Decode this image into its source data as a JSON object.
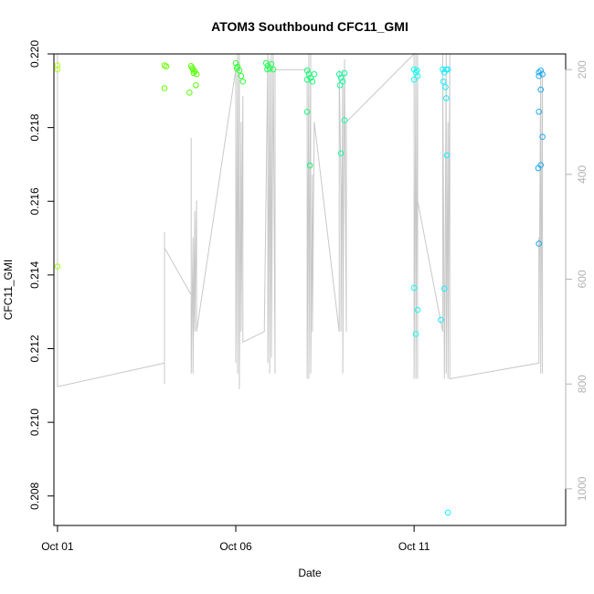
{
  "chart_data": {
    "type": "scatter",
    "title": "ATOM3 Southbound CFC11_GMI",
    "xlabel": "Date",
    "ylabel": "CFC11_GMI",
    "xlim": [
      -0.1,
      14.25
    ],
    "ylim": [
      0.2072,
      0.22
    ],
    "xticks": [
      {
        "value": 0,
        "label": "Oct 01"
      },
      {
        "value": 5,
        "label": "Oct 06"
      },
      {
        "value": 10,
        "label": "Oct 11"
      }
    ],
    "yticks": [
      0.208,
      0.21,
      0.212,
      0.214,
      0.216,
      0.218,
      0.22
    ],
    "y_right": {
      "lim": [
        1070,
        170
      ],
      "ticks": [
        200,
        400,
        600,
        800,
        1000
      ],
      "color": "#b3b3b3"
    },
    "grid": false,
    "points": [
      {
        "x": 0.0,
        "y": 0.21969,
        "color": "#b3ff1a"
      },
      {
        "x": 0.0,
        "y": 0.21958,
        "color": "#b3ff1a"
      },
      {
        "x": 0.0,
        "y": 0.21423,
        "color": "#a8ff1a"
      },
      {
        "x": 3.0,
        "y": 0.21969,
        "color": "#66ff00"
      },
      {
        "x": 3.05,
        "y": 0.21966,
        "color": "#66ff00"
      },
      {
        "x": 3.0,
        "y": 0.21907,
        "color": "#66ff00"
      },
      {
        "x": 3.75,
        "y": 0.21967,
        "color": "#55ff00"
      },
      {
        "x": 3.8,
        "y": 0.21958,
        "color": "#55ff00"
      },
      {
        "x": 3.85,
        "y": 0.21953,
        "color": "#55ff00"
      },
      {
        "x": 3.9,
        "y": 0.21945,
        "color": "#55ff00"
      },
      {
        "x": 3.78,
        "y": 0.21962,
        "color": "#55ff00"
      },
      {
        "x": 3.7,
        "y": 0.21895,
        "color": "#55ff00"
      },
      {
        "x": 3.88,
        "y": 0.21915,
        "color": "#55ff00"
      },
      {
        "x": 3.82,
        "y": 0.21948,
        "color": "#55ff00"
      },
      {
        "x": 5.0,
        "y": 0.21975,
        "color": "#33ff33"
      },
      {
        "x": 5.05,
        "y": 0.21965,
        "color": "#33ff33"
      },
      {
        "x": 5.1,
        "y": 0.21955,
        "color": "#33ff33"
      },
      {
        "x": 5.15,
        "y": 0.2194,
        "color": "#33ff33"
      },
      {
        "x": 5.2,
        "y": 0.21925,
        "color": "#33ff33"
      },
      {
        "x": 5.03,
        "y": 0.2196,
        "color": "#33ff33"
      },
      {
        "x": 5.85,
        "y": 0.21975,
        "color": "#22ff55"
      },
      {
        "x": 5.9,
        "y": 0.21968,
        "color": "#22ff55"
      },
      {
        "x": 5.95,
        "y": 0.2196,
        "color": "#22ff55"
      },
      {
        "x": 6.0,
        "y": 0.21972,
        "color": "#22ff55"
      },
      {
        "x": 6.05,
        "y": 0.21958,
        "color": "#22ff55"
      },
      {
        "x": 5.88,
        "y": 0.21958,
        "color": "#22ff55"
      },
      {
        "x": 7.0,
        "y": 0.21955,
        "color": "#11ff77"
      },
      {
        "x": 7.05,
        "y": 0.21945,
        "color": "#11ff77"
      },
      {
        "x": 7.1,
        "y": 0.21935,
        "color": "#11ff77"
      },
      {
        "x": 7.15,
        "y": 0.21925,
        "color": "#11ff77"
      },
      {
        "x": 7.2,
        "y": 0.21945,
        "color": "#11ff77"
      },
      {
        "x": 7.0,
        "y": 0.2193,
        "color": "#11ff77"
      },
      {
        "x": 7.0,
        "y": 0.21843,
        "color": "#11ff77"
      },
      {
        "x": 7.08,
        "y": 0.21697,
        "color": "#11ff77"
      },
      {
        "x": 7.9,
        "y": 0.21945,
        "color": "#11ffa0"
      },
      {
        "x": 7.95,
        "y": 0.21935,
        "color": "#11ffa0"
      },
      {
        "x": 8.0,
        "y": 0.21925,
        "color": "#11ffa0"
      },
      {
        "x": 8.05,
        "y": 0.21948,
        "color": "#11ffa0"
      },
      {
        "x": 7.92,
        "y": 0.21915,
        "color": "#11ffa0"
      },
      {
        "x": 8.05,
        "y": 0.2182,
        "color": "#11ffa0"
      },
      {
        "x": 7.95,
        "y": 0.2173,
        "color": "#11ffa0"
      },
      {
        "x": 10.0,
        "y": 0.21958,
        "color": "#11ffee"
      },
      {
        "x": 10.05,
        "y": 0.2195,
        "color": "#11ffee"
      },
      {
        "x": 10.1,
        "y": 0.2194,
        "color": "#11ffee"
      },
      {
        "x": 10.0,
        "y": 0.2193,
        "color": "#11ffee"
      },
      {
        "x": 10.08,
        "y": 0.21955,
        "color": "#11ffee"
      },
      {
        "x": 10.0,
        "y": 0.21365,
        "color": "#11ffee"
      },
      {
        "x": 10.1,
        "y": 0.21305,
        "color": "#11ffee"
      },
      {
        "x": 10.05,
        "y": 0.2124,
        "color": "#11ffee"
      },
      {
        "x": 10.8,
        "y": 0.21958,
        "color": "#11f0ff"
      },
      {
        "x": 10.85,
        "y": 0.2195,
        "color": "#11f0ff"
      },
      {
        "x": 10.9,
        "y": 0.21958,
        "color": "#11f0ff"
      },
      {
        "x": 10.95,
        "y": 0.21958,
        "color": "#11f0ff"
      },
      {
        "x": 10.82,
        "y": 0.21925,
        "color": "#11f0ff"
      },
      {
        "x": 10.88,
        "y": 0.2191,
        "color": "#11f0ff"
      },
      {
        "x": 10.9,
        "y": 0.2188,
        "color": "#11f0ff"
      },
      {
        "x": 10.92,
        "y": 0.21725,
        "color": "#11f0ff"
      },
      {
        "x": 10.85,
        "y": 0.21363,
        "color": "#11f0ff"
      },
      {
        "x": 10.75,
        "y": 0.21278,
        "color": "#11f0ff"
      },
      {
        "x": 10.95,
        "y": 0.20755,
        "color": "#11f0ff"
      },
      {
        "x": 13.5,
        "y": 0.2195,
        "color": "#22aaee"
      },
      {
        "x": 13.55,
        "y": 0.21955,
        "color": "#22aaee"
      },
      {
        "x": 13.6,
        "y": 0.21945,
        "color": "#22aaee"
      },
      {
        "x": 13.5,
        "y": 0.2194,
        "color": "#22aaee"
      },
      {
        "x": 13.55,
        "y": 0.21903,
        "color": "#22aaee"
      },
      {
        "x": 13.5,
        "y": 0.21843,
        "color": "#22aaee"
      },
      {
        "x": 13.6,
        "y": 0.21775,
        "color": "#22aaee"
      },
      {
        "x": 13.55,
        "y": 0.21698,
        "color": "#22aaee"
      },
      {
        "x": 13.48,
        "y": 0.2169,
        "color": "#22aaee"
      },
      {
        "x": 13.5,
        "y": 0.21485,
        "color": "#22aaee"
      }
    ],
    "profile_line": {
      "color": "#c8c8c8",
      "points": [
        [
          0.0,
          170
        ],
        [
          0.0,
          805
        ],
        [
          3.0,
          760
        ],
        [
          3.0,
          510
        ],
        [
          3.0,
          800
        ],
        [
          3.0,
          540
        ],
        [
          3.75,
          630
        ],
        [
          3.75,
          330
        ],
        [
          3.75,
          780
        ],
        [
          3.8,
          520
        ],
        [
          3.8,
          780
        ],
        [
          3.85,
          470
        ],
        [
          3.85,
          700
        ],
        [
          3.9,
          450
        ],
        [
          3.9,
          700
        ],
        [
          5.0,
          200
        ],
        [
          5.0,
          760
        ],
        [
          5.05,
          170
        ],
        [
          5.05,
          780
        ],
        [
          5.1,
          170
        ],
        [
          5.1,
          810
        ],
        [
          5.15,
          300
        ],
        [
          5.15,
          700
        ],
        [
          5.2,
          250
        ],
        [
          5.2,
          720
        ],
        [
          5.8,
          700
        ],
        [
          5.9,
          170
        ],
        [
          5.9,
          760
        ],
        [
          5.95,
          180
        ],
        [
          5.95,
          780
        ],
        [
          6.0,
          170
        ],
        [
          6.0,
          750
        ],
        [
          6.05,
          170
        ],
        [
          6.1,
          780
        ],
        [
          6.1,
          200
        ],
        [
          7.0,
          200
        ],
        [
          7.0,
          790
        ],
        [
          7.05,
          170
        ],
        [
          7.05,
          790
        ],
        [
          7.1,
          170
        ],
        [
          7.1,
          780
        ],
        [
          7.15,
          400
        ],
        [
          7.15,
          700
        ],
        [
          7.2,
          300
        ],
        [
          7.9,
          700
        ],
        [
          7.9,
          200
        ],
        [
          7.95,
          420
        ],
        [
          7.95,
          700
        ],
        [
          8.0,
          200
        ],
        [
          8.0,
          780
        ],
        [
          8.05,
          180
        ],
        [
          8.1,
          700
        ],
        [
          8.1,
          300
        ],
        [
          10.0,
          170
        ],
        [
          10.0,
          790
        ],
        [
          10.05,
          170
        ],
        [
          10.05,
          790
        ],
        [
          10.1,
          170
        ],
        [
          10.1,
          790
        ],
        [
          10.1,
          450
        ],
        [
          10.8,
          700
        ],
        [
          10.8,
          170
        ],
        [
          10.85,
          790
        ],
        [
          10.9,
          170
        ],
        [
          10.9,
          780
        ],
        [
          10.95,
          300
        ],
        [
          10.95,
          790
        ],
        [
          11.0,
          170
        ],
        [
          11.0,
          790
        ],
        [
          13.5,
          760
        ],
        [
          13.5,
          520
        ],
        [
          13.5,
          740
        ],
        [
          13.55,
          200
        ],
        [
          13.55,
          780
        ],
        [
          13.6,
          200
        ],
        [
          13.6,
          780
        ]
      ]
    }
  }
}
